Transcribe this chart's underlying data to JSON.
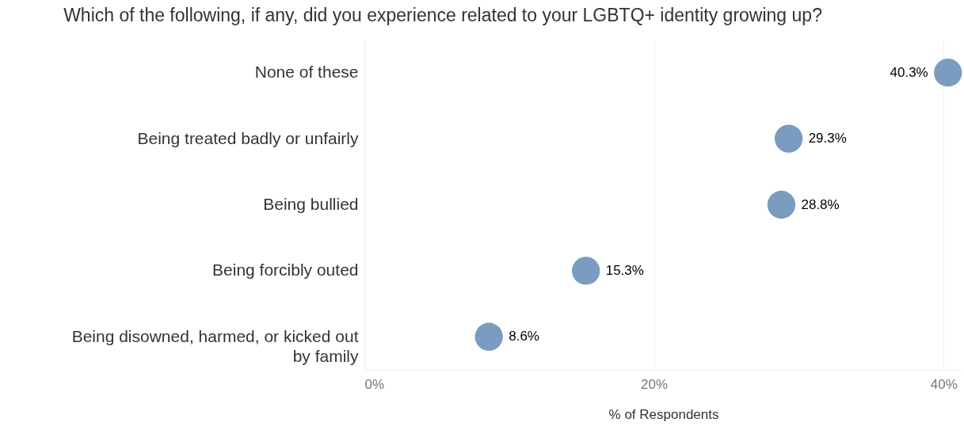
{
  "chart_data": {
    "type": "scatter",
    "title": "Which of the following, if any, did you experience related to your LGBTQ+ identity growing up?",
    "orientation": "horizontal",
    "categories": [
      "None of these",
      "Being treated badly or unfairly",
      "Being bullied",
      "Being forcibly outed",
      "Being disowned, harmed, or kicked out by family"
    ],
    "values": [
      40.3,
      29.3,
      28.8,
      15.3,
      8.6
    ],
    "value_labels": [
      "40.3%",
      "29.3%",
      "28.8%",
      "15.3%",
      "8.6%"
    ],
    "color": "#7a9cc0",
    "marker": "circle",
    "xlabel": "% of Respondents",
    "xlim": [
      0,
      41.3
    ],
    "xticks": [
      {
        "value": 0,
        "label": "0%"
      },
      {
        "value": 20,
        "label": "20%"
      },
      {
        "value": 40,
        "label": "40%"
      }
    ],
    "grid": "x"
  }
}
